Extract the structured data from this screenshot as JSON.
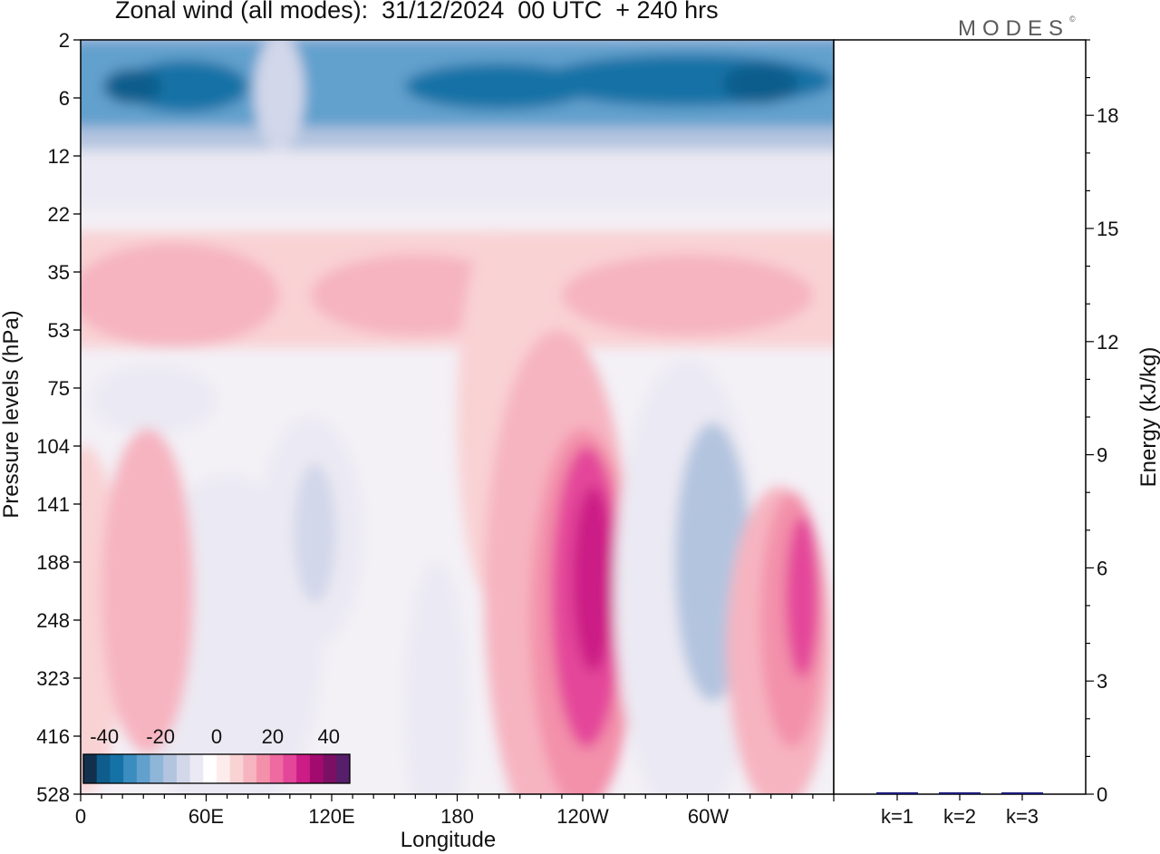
{
  "title": "Zonal wind (all modes):  31/12/2024  00 UTC  + 240 hrs",
  "brand": "MODES",
  "brand_mark": "©",
  "chart_data": [
    {
      "type": "heatmap",
      "title": "Zonal wind (all modes):  31/12/2024  00 UTC  + 240 hrs",
      "xlabel": "Longitude",
      "ylabel": "Pressure levels (hPa)",
      "x_ticks": [
        "0",
        "60E",
        "120E",
        "180",
        "120W",
        "60W"
      ],
      "x_tick_values_deg": [
        0,
        60,
        120,
        180,
        240,
        300
      ],
      "xlim_deg": [
        0,
        360
      ],
      "y_ticks": [
        "2",
        "6",
        "12",
        "22",
        "35",
        "53",
        "75",
        "104",
        "141",
        "188",
        "248",
        "323",
        "416",
        "528"
      ],
      "y_scale": "model levels (uneven)",
      "colorbar": {
        "tick_labels": [
          "-40",
          "-20",
          "0",
          "20",
          "40"
        ],
        "levels": [
          -45,
          -40,
          -35,
          -30,
          -25,
          -20,
          -15,
          -10,
          -5,
          0,
          5,
          10,
          15,
          20,
          25,
          30,
          35,
          40,
          45
        ],
        "colors": [
          "#12304d",
          "#0e5d8c",
          "#1572a6",
          "#3b8cbf",
          "#62a0cd",
          "#8fb6d8",
          "#b3c4df",
          "#d2d7ea",
          "#ebe9f3",
          "#ffffff",
          "#fdeceb",
          "#f9d2d4",
          "#f6b4c0",
          "#f390aa",
          "#ee6aa0",
          "#e4469a",
          "#cc1c86",
          "#a20a70",
          "#7b0f64",
          "#561e6b"
        ],
        "placement": "bottom-left"
      },
      "colormap_name": "diverging blue-white-magenta",
      "grid": false,
      "features": [
        {
          "label": "easterly band 2-12 hPa",
          "approx_min_value": -45
        },
        {
          "label": "westerly maximum near 120W, 141-248 hPa",
          "approx_max_value": 35
        },
        {
          "label": "westerly maximum near 20W, 141-248 hPa",
          "approx_max_value": 30
        },
        {
          "label": "easterly region near 60W, 75-323 hPa",
          "approx_min_value": -20
        }
      ]
    },
    {
      "type": "bar",
      "categories": [
        "k=1",
        "k=2",
        "k=3"
      ],
      "values": [
        0.05,
        0.05,
        0.03
      ],
      "ylabel": "Energy (kJ/kg)",
      "y_ticks": [
        "0",
        "3",
        "6",
        "9",
        "12",
        "15",
        "18"
      ],
      "ylim": [
        0,
        20
      ],
      "bar_color": "#1a1a7a",
      "grid": false
    }
  ]
}
